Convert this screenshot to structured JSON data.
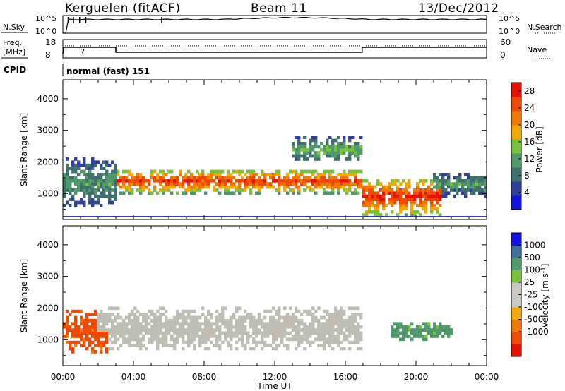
{
  "header": {
    "station": "Kerguelen (fitACF)",
    "beam": "Beam 11",
    "date": "13/Dec/2012"
  },
  "strip": {
    "nsky_label": "N.Sky",
    "nsky_ticks": [
      "10^5",
      "10^0"
    ],
    "nsearch_label": "N.Search",
    "nsearch_ticks": [
      "10^5",
      "10^0"
    ],
    "freq_label_1": "Freq.",
    "freq_label_2": "[MHz]",
    "freq_ticks": [
      "18",
      "8"
    ],
    "nave_label": "Nave",
    "nave_ticks": [
      "60",
      "0"
    ],
    "cpid_label": "CPID",
    "mode_text": "normal (fast) 151",
    "question_mark": "?"
  },
  "colors": {
    "power": [
      "#1414e0",
      "#2f3f9a",
      "#3f6f6f",
      "#4f9a6a",
      "#79c23a",
      "#f2a800",
      "#f07a00",
      "#f04a00",
      "#e81000"
    ],
    "velocity": [
      "#e81000",
      "#f04a00",
      "#f07a00",
      "#f2a800",
      "#c8c8c0",
      "#c8c8c0",
      "#79c23a",
      "#4f9a6a",
      "#3f6f9a",
      "#1414e0"
    ],
    "velocity_nonbinned_gray": "#bebeb4"
  },
  "chart_data": [
    {
      "type": "heatmap",
      "panel": "power",
      "ylabel": "Slant Range [km]",
      "xlabel": "Time UT",
      "x_ticks": [
        "00:00",
        "04:00",
        "08:00",
        "12:00",
        "16:00",
        "20:00",
        "00:00"
      ],
      "y_ticks": [
        1000,
        2000,
        3000,
        4000
      ],
      "xlim_hours": [
        0,
        24
      ],
      "ylim_km": [
        180,
        4600
      ],
      "colorbar": {
        "label": "Power [dB]",
        "ticks": [
          "4",
          "8",
          "12",
          "16",
          "20",
          "24",
          "28"
        ],
        "range": [
          0,
          30
        ]
      },
      "features": [
        {
          "region": "main F-region band",
          "from_ut": "03:00",
          "to_ut": "17:00",
          "range_km": [
            1000,
            1800
          ],
          "power_db": 26
        },
        {
          "region": "early mixed echoes",
          "from_ut": "00:00",
          "to_ut": "03:00",
          "range_km": [
            600,
            2100
          ],
          "power_db": 12
        },
        {
          "region": "upper echoes",
          "from_ut": "13:00",
          "to_ut": "17:00",
          "range_km": [
            2000,
            2800
          ],
          "power_db": 14
        },
        {
          "region": "late strong echoes",
          "from_ut": "17:00",
          "to_ut": "21:30",
          "range_km": [
            300,
            1500
          ],
          "power_db": 28
        },
        {
          "region": "late band",
          "from_ut": "21:00",
          "to_ut": "24:00",
          "range_km": [
            900,
            1700
          ],
          "power_db": 12
        }
      ]
    },
    {
      "type": "heatmap",
      "panel": "velocity",
      "ylabel": "Slant Range [km]",
      "xlabel": "Time UT",
      "x_ticks": [
        "00:00",
        "04:00",
        "08:00",
        "12:00",
        "16:00",
        "20:00",
        "00:00"
      ],
      "y_ticks": [
        1000,
        2000,
        3000,
        4000
      ],
      "xlim_hours": [
        0,
        24
      ],
      "ylim_km": [
        180,
        4600
      ],
      "colorbar": {
        "label": "Velocity [m s^-1]",
        "label_main": "Velocity",
        "label_unit": "[m s",
        "label_exp": "-1",
        "label_close": "]",
        "ticks": [
          "1000",
          "500",
          "100",
          "25",
          "-25",
          "-100",
          "-500",
          "-1000"
        ]
      },
      "features": [
        {
          "region": "ground scatter",
          "from_ut": "02:00",
          "to_ut": "17:00",
          "range_km": [
            700,
            2000
          ],
          "velocity": 0
        },
        {
          "region": "positive flow",
          "from_ut": "18:30",
          "to_ut": "22:00",
          "range_km": [
            1000,
            1600
          ],
          "velocity": 150
        },
        {
          "region": "mixed negative flow",
          "from_ut": "00:00",
          "to_ut": "02:30",
          "range_km": [
            600,
            1900
          ],
          "velocity": -150
        }
      ]
    }
  ]
}
